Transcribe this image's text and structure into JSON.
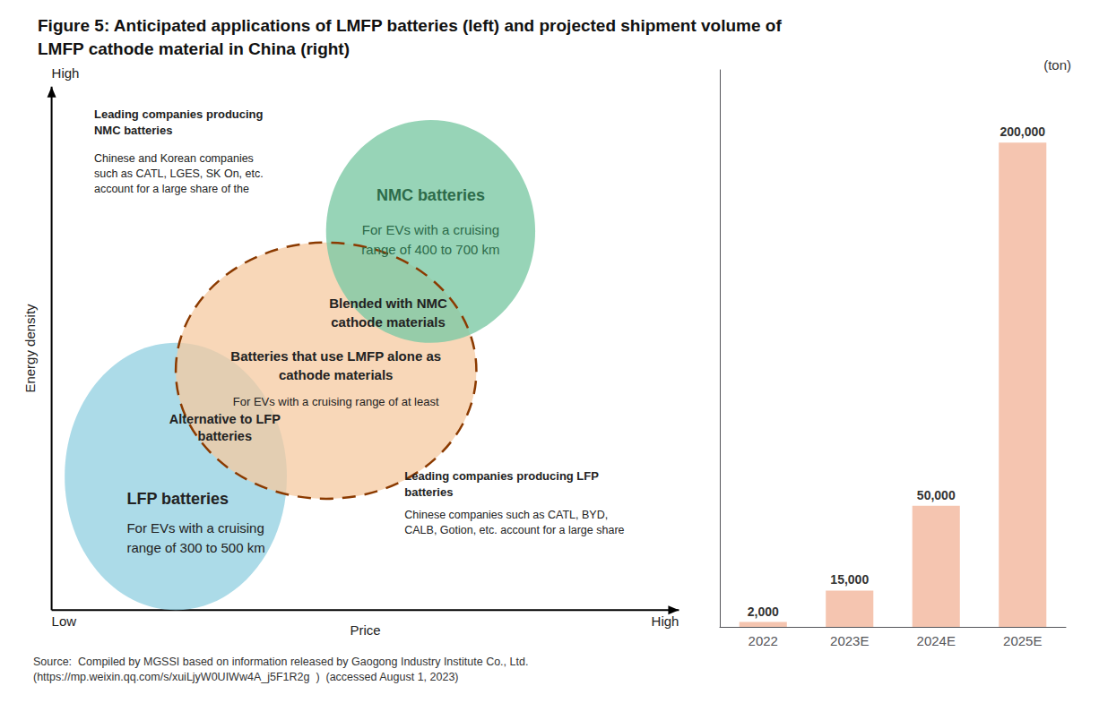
{
  "chart_data": [
    {
      "type": "diagram",
      "title": "Figure 5: Anticipated applications of LMFP batteries (left) and projected shipment volume of\nLMFP cathode material in China (right)",
      "xlabel": "Price",
      "ylabel": "Energy density",
      "series": [
        {
          "color": "#90cfe0"
        },
        {
          "color": "#f5c9a0"
        },
        {
          "color": "#7dc9a5"
        },
        {
          "color": "#8B3A00",
          "line_style": "dashed"
        }
      ],
      "annotations": [
        {
          "text": "High"
        },
        {
          "text": "Low"
        },
        {
          "text": "High"
        },
        {
          "text": "NMC batteries",
          "color": "#2d6b4a"
        },
        {
          "text": "For EVs with a cruising\nrange of 400 to 700 km",
          "color": "#2d6b4a"
        },
        {
          "text": "Blended with NMC\ncathode materials"
        },
        {
          "text": "Batteries that use LMFP alone as\ncathode materials"
        },
        {
          "text": "For EVs with a cruising range of at least"
        },
        {
          "text": "Alternative to LFP\nbatteries"
        },
        {
          "text": "LFP batteries"
        },
        {
          "text": "For EVs with a cruising\nrange of 300 to 500 km"
        },
        {
          "text": "Leading companies producing\nNMC batteries"
        },
        {
          "text": "Chinese and Korean companies\nsuch as CATL, LGES, SK On, etc.\naccount for a large share of the"
        },
        {
          "text": "Leading companies producing LFP\nbatteries"
        },
        {
          "text": "Chinese companies such as CATL, BYD,\nCALB, Gotion, etc. account for a large share"
        }
      ]
    },
    {
      "type": "bar",
      "categories": [
        "2022",
        "2023E",
        "2024E",
        "2025E"
      ],
      "values": [
        2000,
        15000,
        50000,
        200000
      ],
      "value_labels": [
        "2,000",
        "15,000",
        "50,000",
        "200,000"
      ],
      "color": "#f5c5b0",
      "ylim": [
        0,
        230000
      ],
      "data_labels": true,
      "tick_labels": "x",
      "grid": false,
      "annotations": [
        {
          "text": "(ton)"
        },
        {
          "text": "Source:  Compiled by MGSSI based on information released by Gaogong Industry Institute Co., Ltd.\n(https://mp.weixin.qq.com/s/xuiLjyW0UIWw4A_j5F1R2g  )  (accessed August 1, 2023)"
        }
      ]
    }
  ]
}
